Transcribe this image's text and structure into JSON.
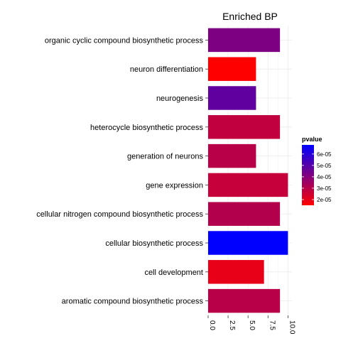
{
  "chart_data": {
    "type": "bar",
    "orientation": "horizontal",
    "title": "Enriched BP",
    "xlabel": "",
    "ylabel": "",
    "xlim": [
      0,
      10.5
    ],
    "x_ticks": [
      "0.0",
      "2.5",
      "5.0",
      "7.5",
      "10.0"
    ],
    "x_tick_values": [
      0,
      2.5,
      5,
      7.5,
      10
    ],
    "grid": true,
    "categories": [
      "organic cyclic compound biosynthetic process",
      "neuron differentiation",
      "neurogenesis",
      "heterocycle biosynthetic process",
      "generation of neurons",
      "gene expression",
      "cellular nitrogen compound biosynthetic process",
      "cellular biosynthetic process",
      "cell development",
      "aromatic compound biosynthetic process"
    ],
    "values": [
      9,
      6,
      6,
      9,
      6,
      10,
      9,
      10,
      7,
      9
    ],
    "pvalues": [
      4.2e-05,
      1.5e-05,
      4.8e-05,
      2.8e-05,
      3e-05,
      2.7e-05,
      3.1e-05,
      6.8e-05,
      2e-05,
      3e-05
    ],
    "legend": {
      "title": "pvalue",
      "placement": "right",
      "labels": [
        "6e-05",
        "5e-05",
        "4e-05",
        "3e-05",
        "2e-05"
      ],
      "values": [
        6e-05,
        5e-05,
        4e-05,
        3e-05,
        2e-05
      ],
      "range": [
        1.5e-05,
        6.8e-05
      ],
      "low_color": "#ff0000",
      "high_color": "#0000ff"
    }
  }
}
